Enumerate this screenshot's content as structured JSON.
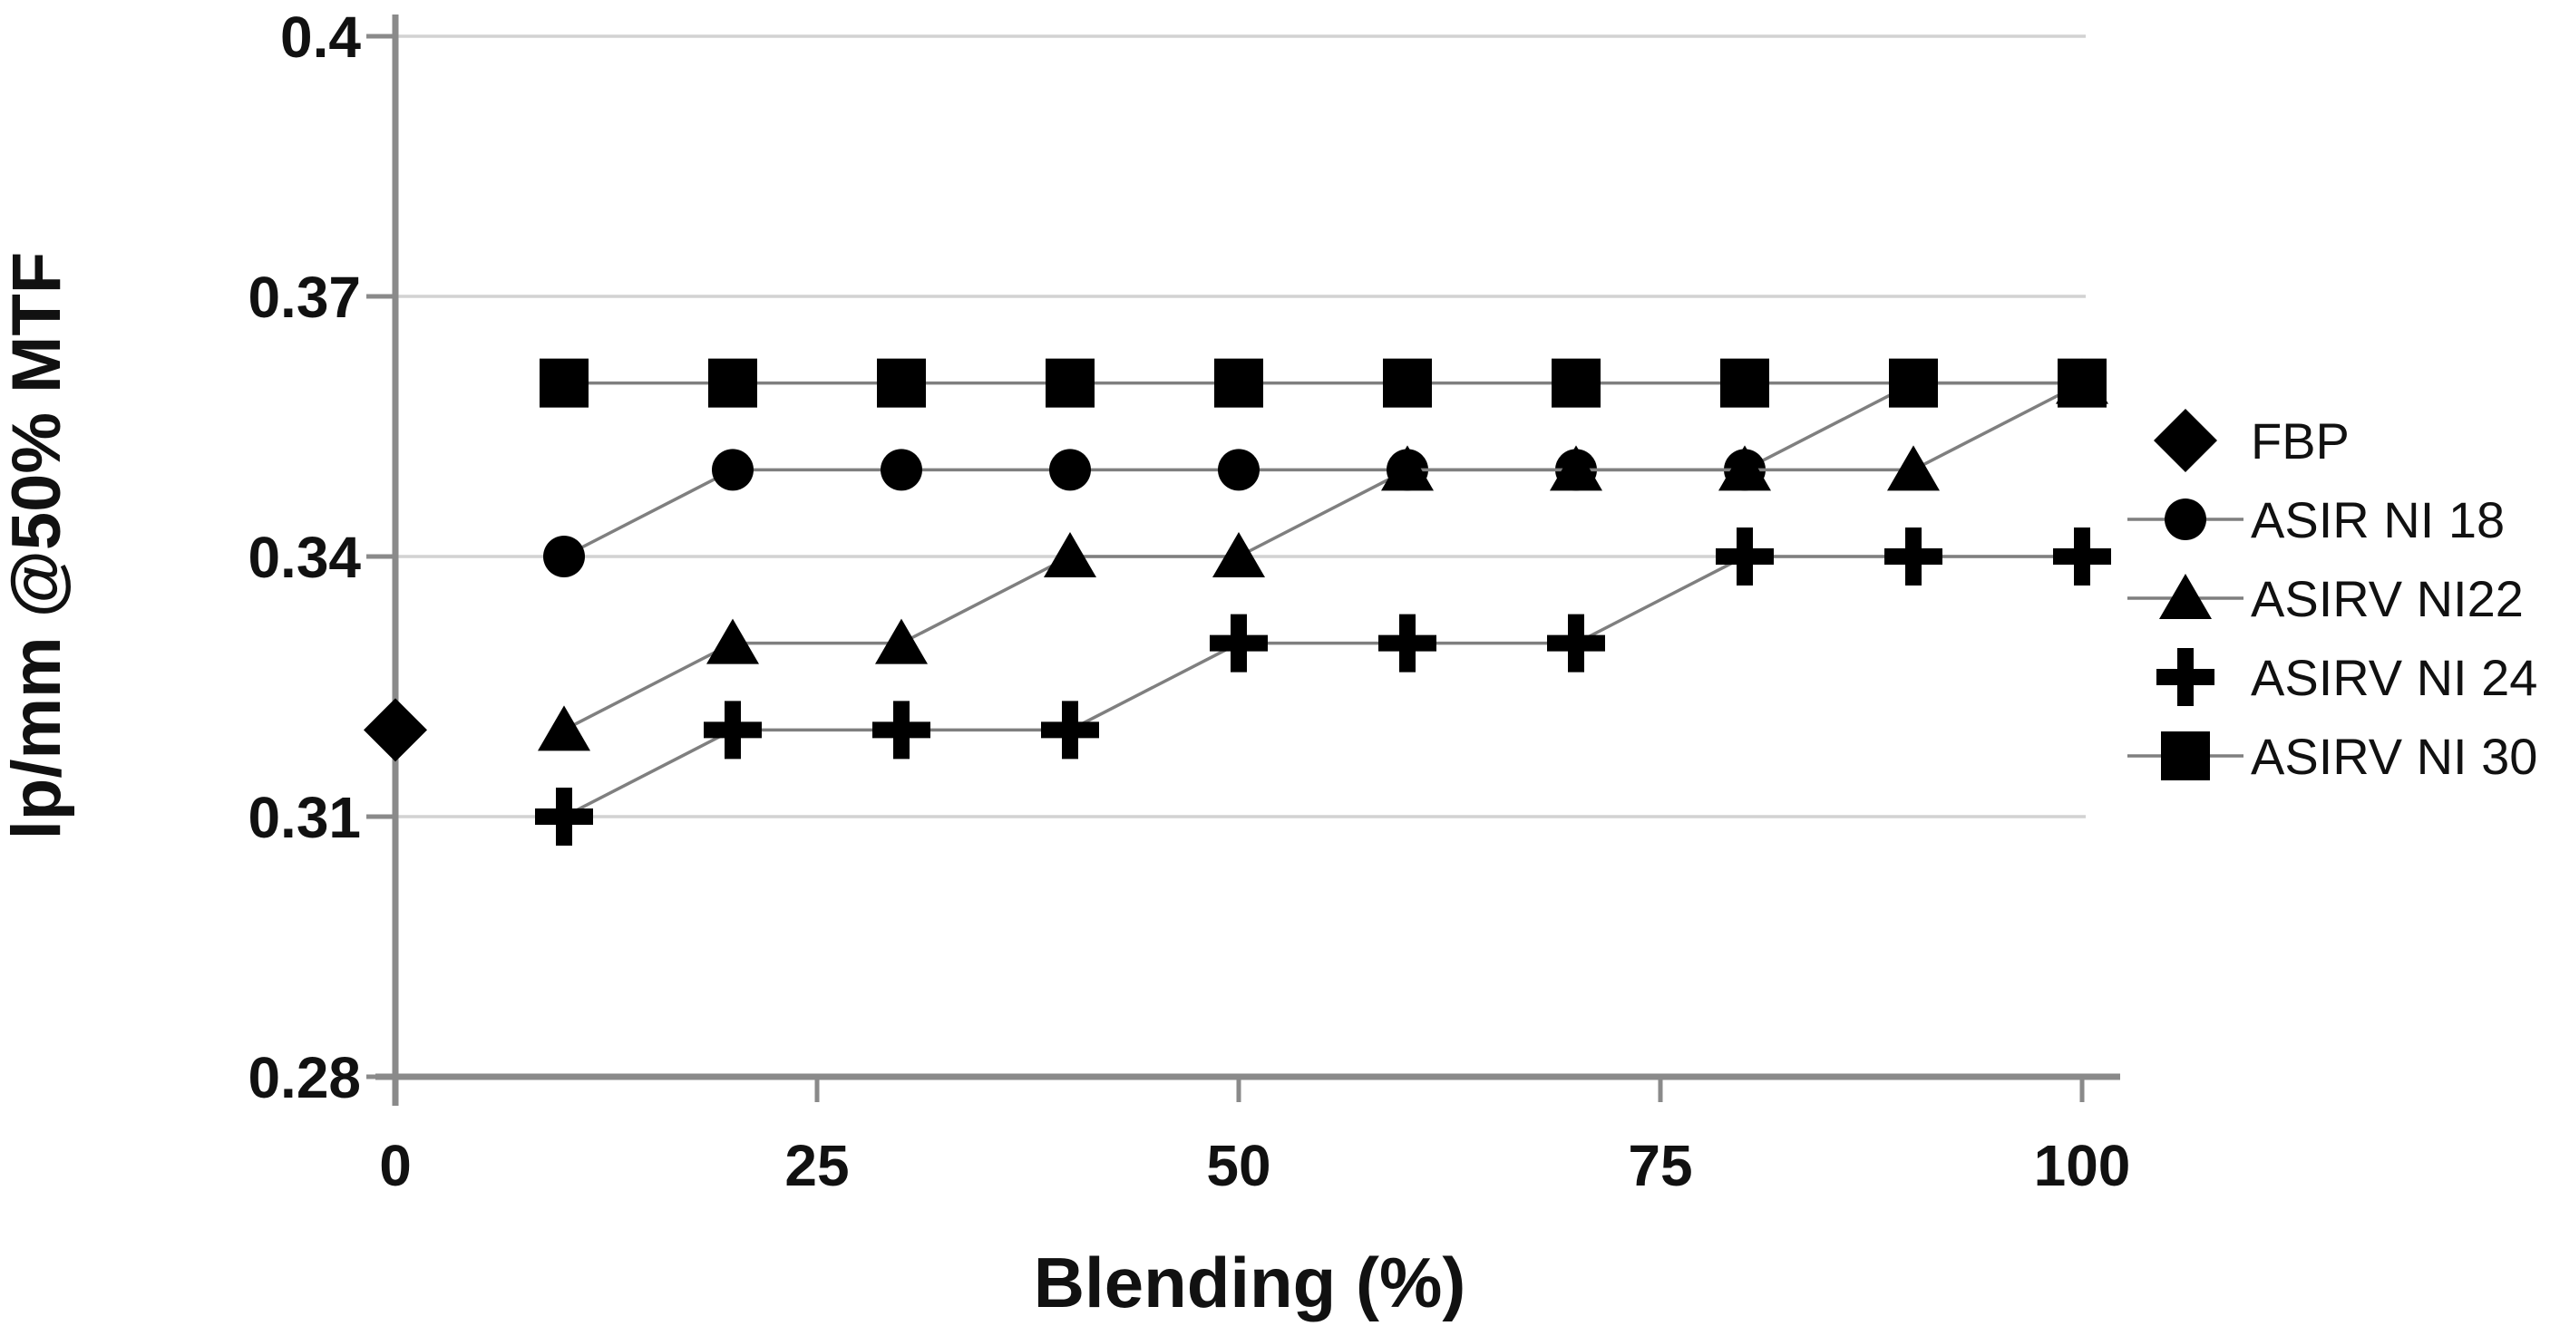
{
  "figure": {
    "x_axis_title": "Blending (%)",
    "y_axis_title": "lp/mm @50% MTF"
  },
  "chart_data": {
    "type": "scatter",
    "title": "",
    "xlabel": "Blending (%)",
    "ylabel": "lp/mm @50% MTF",
    "x_ticks": [
      0,
      25,
      50,
      75,
      100
    ],
    "y_ticks": [
      0.28,
      0.31,
      0.34,
      0.37,
      0.4
    ],
    "xlim": [
      0,
      100
    ],
    "ylim": [
      0.28,
      0.4
    ],
    "grid": "horizontal",
    "legend_position": "right",
    "marker_color": "#000000",
    "line_color": "#7f7f7f",
    "grid_color": "#d2d2d2",
    "axis_color": "#8a8a8a",
    "series": [
      {
        "name": "FBP",
        "marker": "diamond",
        "legend_stub": false,
        "x": [
          0
        ],
        "y": [
          0.32
        ]
      },
      {
        "name": "ASIR NI 18",
        "marker": "circle",
        "legend_stub": true,
        "x": [
          10,
          20,
          30,
          40,
          50,
          60,
          70,
          80,
          90,
          100
        ],
        "y": [
          0.34,
          0.35,
          0.35,
          0.35,
          0.35,
          0.35,
          0.35,
          0.35,
          0.36,
          0.36
        ]
      },
      {
        "name": "ASIRV NI22",
        "marker": "triangle",
        "legend_stub": true,
        "x": [
          10,
          20,
          30,
          40,
          50,
          60,
          70,
          80,
          90,
          100
        ],
        "y": [
          0.32,
          0.33,
          0.33,
          0.34,
          0.34,
          0.35,
          0.35,
          0.35,
          0.35,
          0.36
        ]
      },
      {
        "name": "ASIRV NI 24",
        "marker": "plus",
        "legend_stub": false,
        "x": [
          10,
          20,
          30,
          40,
          50,
          60,
          70,
          80,
          90,
          100
        ],
        "y": [
          0.31,
          0.32,
          0.32,
          0.32,
          0.33,
          0.33,
          0.33,
          0.34,
          0.34,
          0.34
        ]
      },
      {
        "name": "ASIRV NI 30",
        "marker": "square",
        "legend_stub": true,
        "x": [
          10,
          20,
          30,
          40,
          50,
          60,
          70,
          80,
          90,
          100
        ],
        "y": [
          0.36,
          0.36,
          0.36,
          0.36,
          0.36,
          0.36,
          0.36,
          0.36,
          0.36,
          0.36
        ]
      }
    ]
  }
}
